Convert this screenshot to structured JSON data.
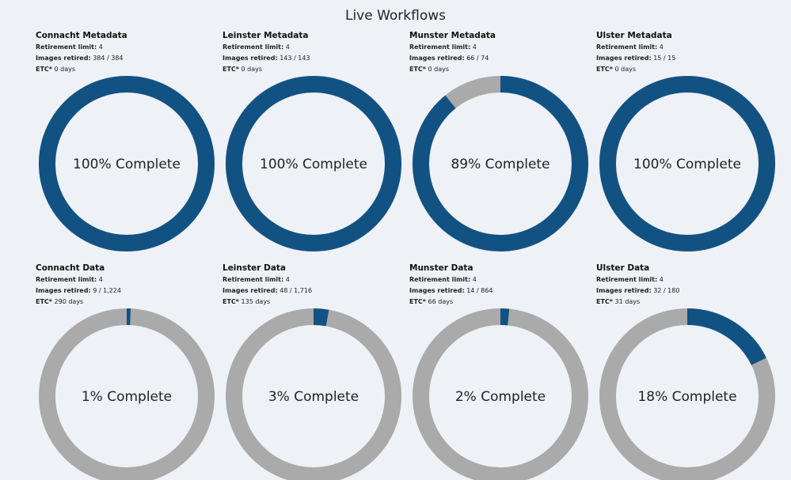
{
  "header": {
    "title": "Live Workflows"
  },
  "colors": {
    "complete": "#125283",
    "remaining": "#aaaaaa",
    "background": "#eef1f6"
  },
  "labels": {
    "retirement": "Retirement limit:",
    "retired": "Images retired:",
    "etc": "ETC*"
  },
  "workflows": [
    {
      "name": "Connacht Metadata",
      "retirement_limit": "4",
      "images_retired": "384 / 384",
      "etc": "0 days",
      "percent": 100,
      "progress": 1.0,
      "label": "100% Complete"
    },
    {
      "name": "Leinster Metadata",
      "retirement_limit": "4",
      "images_retired": "143 / 143",
      "etc": "0 days",
      "percent": 100,
      "progress": 1.0,
      "label": "100% Complete"
    },
    {
      "name": "Munster Metadata",
      "retirement_limit": "4",
      "images_retired": "66 / 74",
      "etc": "0 days",
      "percent": 89,
      "progress": 0.892,
      "label": "89% Complete"
    },
    {
      "name": "Ulster Metadata",
      "retirement_limit": "4",
      "images_retired": "15 / 15",
      "etc": "0 days",
      "percent": 100,
      "progress": 1.0,
      "label": "100% Complete"
    },
    {
      "name": "Connacht Data",
      "retirement_limit": "4",
      "images_retired": "9 / 1,224",
      "etc": "290 days",
      "percent": 1,
      "progress": 0.0074,
      "label": "1% Complete"
    },
    {
      "name": "Leinster Data",
      "retirement_limit": "4",
      "images_retired": "48 / 1,716",
      "etc": "135 days",
      "percent": 3,
      "progress": 0.028,
      "label": "3% Complete"
    },
    {
      "name": "Munster Data",
      "retirement_limit": "4",
      "images_retired": "14 / 864",
      "etc": "66 days",
      "percent": 2,
      "progress": 0.0162,
      "label": "2% Complete"
    },
    {
      "name": "Ulster Data",
      "retirement_limit": "4",
      "images_retired": "32 / 180",
      "etc": "31 days",
      "percent": 18,
      "progress": 0.178,
      "label": "18% Complete"
    }
  ]
}
